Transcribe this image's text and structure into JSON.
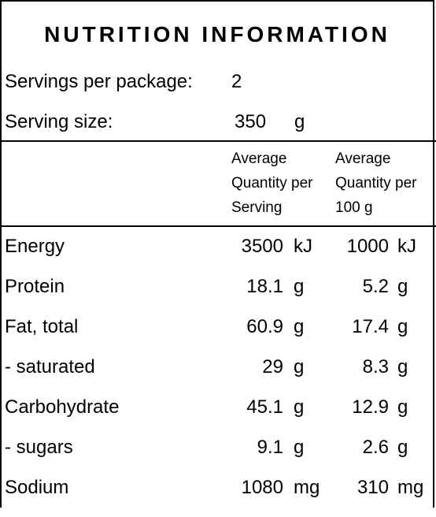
{
  "panel": {
    "title": "NUTRITION INFORMATION",
    "servings_label": "Servings per package:",
    "servings_value": "2",
    "serving_size_label": "Serving size:",
    "serving_size_value": "350",
    "serving_size_unit": "g"
  },
  "columns": {
    "per_serving": [
      "Average",
      "Quantity per",
      "Serving"
    ],
    "per_100g": [
      "Average",
      "Quantity per",
      "100 g"
    ]
  },
  "nutrients": [
    {
      "label": "Energy",
      "serving": "3500",
      "serving_unit": "kJ",
      "per100": "1000",
      "per100_unit": "kJ"
    },
    {
      "label": "Protein",
      "serving": "18.1",
      "serving_unit": "g",
      "per100": "5.2",
      "per100_unit": "g"
    },
    {
      "label": "Fat, total",
      "serving": "60.9",
      "serving_unit": "g",
      "per100": "17.4",
      "per100_unit": "g"
    },
    {
      "label": "- saturated",
      "serving": "29",
      "serving_unit": "g",
      "per100": "8.3",
      "per100_unit": "g"
    },
    {
      "label": "Carbohydrate",
      "serving": "45.1",
      "serving_unit": "g",
      "per100": "12.9",
      "per100_unit": "g"
    },
    {
      "label": "- sugars",
      "serving": "9.1",
      "serving_unit": "g",
      "per100": "2.6",
      "per100_unit": "g"
    },
    {
      "label": "Sodium",
      "serving": "1080",
      "serving_unit": "mg",
      "per100": "310",
      "per100_unit": "mg"
    }
  ]
}
